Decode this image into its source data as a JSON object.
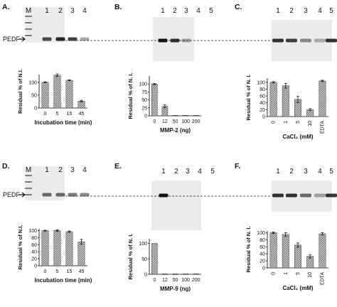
{
  "panels": [
    {
      "id": "A",
      "label": "A.",
      "lanes": [
        "M",
        "1",
        "2",
        "3",
        "4"
      ],
      "gel_side_label": "PEDF",
      "band_intensity": [
        0.0,
        0.75,
        0.9,
        0.8,
        0.35
      ],
      "chart_data": {
        "type": "bar",
        "categories": [
          "0",
          "5",
          "15",
          "45"
        ],
        "values": [
          100,
          128,
          108,
          27
        ],
        "errors": [
          2,
          5,
          2,
          3
        ],
        "ylabel": "Residual % of N.I.",
        "xlabel": "Incubation time (min)",
        "yticks": [
          0,
          50,
          100
        ],
        "ylim": [
          0,
          130
        ]
      }
    },
    {
      "id": "B",
      "label": "B.",
      "lanes": [
        "1",
        "2",
        "3",
        "4",
        "5"
      ],
      "band_intensity": [
        1.0,
        0.85,
        0.35,
        0.0,
        0.0
      ],
      "chart_data": {
        "type": "bar",
        "categories": [
          "0",
          "12",
          "50",
          "100",
          "200"
        ],
        "values": [
          100,
          30,
          0,
          0,
          0
        ],
        "errors": [
          2,
          5,
          0,
          0,
          0
        ],
        "ylabel": "Residual % of N. I.",
        "xlabel": "MMP-2 (ng)",
        "yticks": [
          0,
          25,
          50,
          75,
          100
        ],
        "ylim": [
          0,
          125
        ]
      }
    },
    {
      "id": "C",
      "label": "C.",
      "lanes": [
        "1",
        "2",
        "3",
        "4",
        "5"
      ],
      "band_intensity": [
        0.85,
        0.8,
        0.45,
        0.3,
        0.85
      ],
      "chart_data": {
        "type": "bar",
        "categories": [
          "0",
          "1",
          "5",
          "10",
          "EDTA"
        ],
        "values": [
          100,
          90,
          50,
          20,
          104
        ],
        "errors": [
          2,
          7,
          9,
          3,
          2
        ],
        "ylabel": "Residual % of N. I.",
        "xlabel": "CaCl₂ (mM)",
        "yticks": [
          0,
          20,
          40,
          60,
          80,
          100
        ],
        "ylim": [
          0,
          112
        ]
      }
    },
    {
      "id": "D",
      "label": "D.",
      "lanes": [
        "M",
        "1",
        "2",
        "3",
        "4"
      ],
      "gel_side_label": "PEDF",
      "band_intensity": [
        0.0,
        0.6,
        0.6,
        0.55,
        0.5
      ],
      "chart_data": {
        "type": "bar",
        "categories": [
          "0",
          "5",
          "15",
          "45"
        ],
        "values": [
          100,
          100,
          97,
          68
        ],
        "errors": [
          1,
          2,
          2,
          7
        ],
        "ylabel": "Residual % of N.I.",
        "xlabel": "Incubation time (min)",
        "yticks": [
          0,
          20,
          40,
          60,
          80,
          100
        ],
        "ylim": [
          0,
          105
        ]
      }
    },
    {
      "id": "E",
      "label": "E.",
      "lanes": [
        "1",
        "2",
        "3",
        "4",
        "5"
      ],
      "band_intensity": [
        1.0,
        0.0,
        0.0,
        0.0,
        0.0
      ],
      "chart_data": {
        "type": "bar",
        "categories": [
          "0",
          "12",
          "50",
          "100",
          "200"
        ],
        "values": [
          100,
          0,
          0,
          0,
          0
        ],
        "errors": [
          0,
          0,
          0,
          0,
          0
        ],
        "ylabel": "Residual % of N. I.",
        "xlabel": "MMP-9 (ng)",
        "yticks": [
          0,
          50,
          100
        ],
        "ylim": [
          0,
          115
        ]
      }
    },
    {
      "id": "F",
      "label": "F.",
      "lanes": [
        "1",
        "2",
        "3",
        "4",
        "5"
      ],
      "band_intensity": [
        0.85,
        0.85,
        0.6,
        0.35,
        0.85
      ],
      "chart_data": {
        "type": "bar",
        "categories": [
          "0",
          "1",
          "5",
          "10",
          "EDTA"
        ],
        "values": [
          100,
          95,
          65,
          33,
          97
        ],
        "errors": [
          2,
          5,
          6,
          5,
          3
        ],
        "ylabel": "Residual % of N. I.",
        "xlabel": "CaCl₂ (mM)",
        "yticks": [
          0,
          20,
          40,
          60,
          80,
          100
        ],
        "ylim": [
          0,
          105
        ]
      }
    }
  ],
  "colors": {
    "bar_fill": "#b5b5b5",
    "gel_bg": "#ebebeb",
    "band": "#111111",
    "axis": "#000000"
  }
}
